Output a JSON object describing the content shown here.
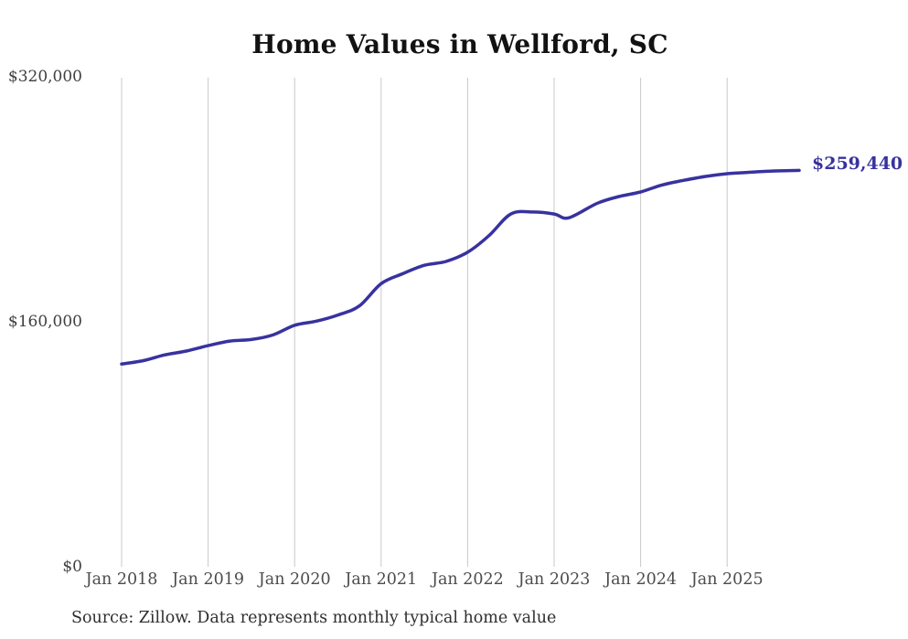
{
  "chart_data": {
    "type": "line",
    "title": "Home Values in Wellford, SC",
    "source": "Source: Zillow. Data represents monthly typical home value",
    "annotation": {
      "text": "$259,440",
      "value": 259440
    },
    "line_color": "#38329f",
    "grid_color": "#c9c9c9",
    "grid": "vertical-only",
    "legend": "none",
    "ylim": [
      0,
      320000
    ],
    "y_ticks": [
      {
        "label": "$320,000",
        "value": 320000
      },
      {
        "label": "$160,000",
        "value": 160000
      },
      {
        "label": "$0",
        "value": 0
      }
    ],
    "x_ticks": [
      "Jan 2018",
      "Jan 2019",
      "Jan 2020",
      "Jan 2021",
      "Jan 2022",
      "Jan 2023",
      "Jan 2024",
      "Jan 2025"
    ],
    "series": [
      {
        "name": "Typical home value",
        "points": [
          [
            "2018-01",
            133000
          ],
          [
            "2018-04",
            135200
          ],
          [
            "2018-07",
            139000
          ],
          [
            "2018-10",
            141500
          ],
          [
            "2019-01",
            145000
          ],
          [
            "2019-04",
            148000
          ],
          [
            "2019-07",
            149000
          ],
          [
            "2019-10",
            152000
          ],
          [
            "2020-01",
            158300
          ],
          [
            "2020-04",
            161000
          ],
          [
            "2020-07",
            165000
          ],
          [
            "2020-10",
            171000
          ],
          [
            "2021-01",
            185500
          ],
          [
            "2021-04",
            192000
          ],
          [
            "2021-07",
            197500
          ],
          [
            "2021-10",
            200000
          ],
          [
            "2022-01",
            206000
          ],
          [
            "2022-04",
            217000
          ],
          [
            "2022-07",
            231000
          ],
          [
            "2022-10",
            232300
          ],
          [
            "2023-01",
            231000
          ],
          [
            "2023-03",
            228500
          ],
          [
            "2023-07",
            238000
          ],
          [
            "2023-10",
            242400
          ],
          [
            "2024-01",
            245400
          ],
          [
            "2024-04",
            250000
          ],
          [
            "2024-07",
            253000
          ],
          [
            "2024-10",
            255500
          ],
          [
            "2025-01",
            257300
          ],
          [
            "2025-04",
            258200
          ],
          [
            "2025-07",
            259000
          ],
          [
            "2025-11",
            259440
          ]
        ]
      }
    ]
  }
}
